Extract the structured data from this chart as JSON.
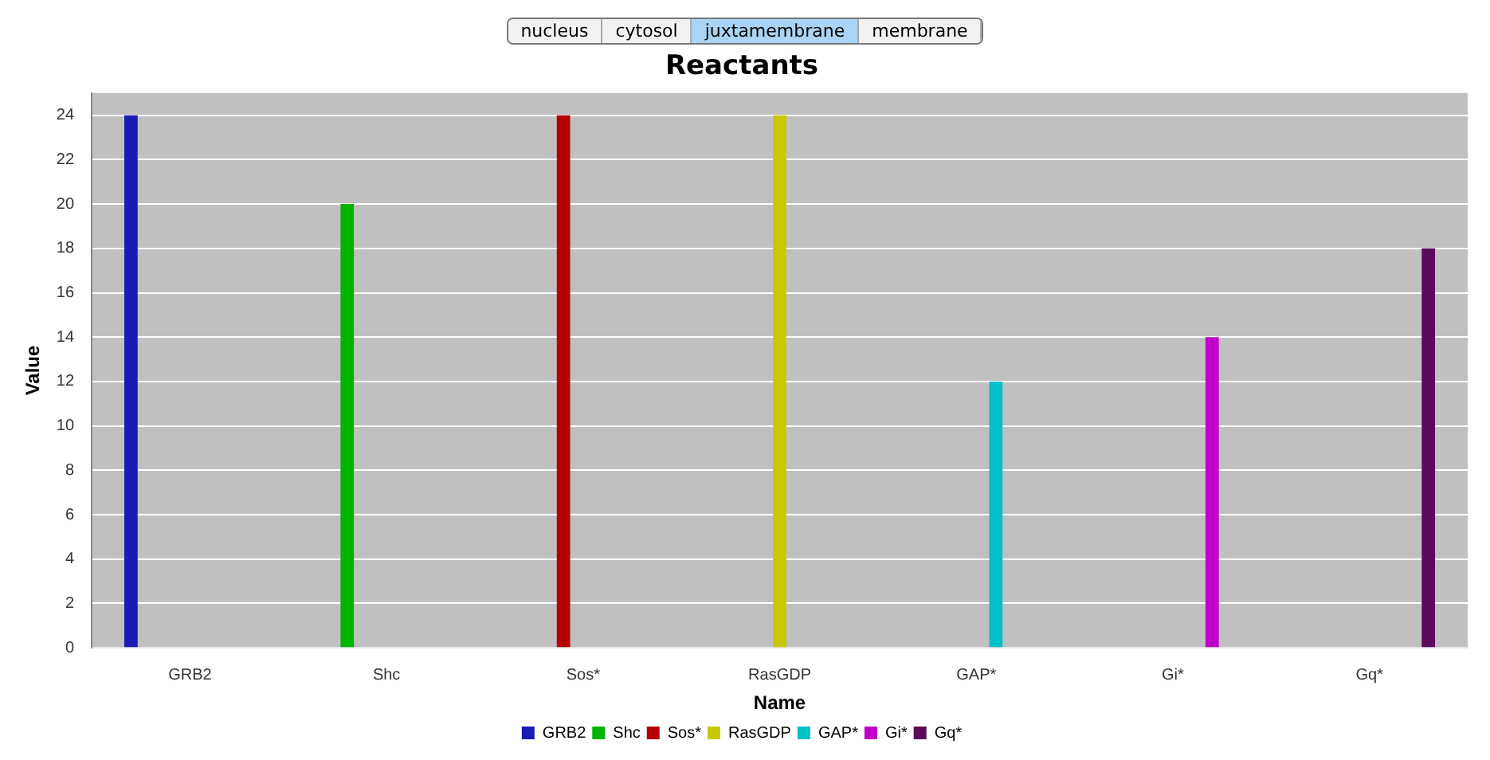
{
  "chart_data": {
    "type": "bar",
    "title": "Reactants",
    "xlabel": "Name",
    "ylabel": "Value",
    "annotations": [
      "nucleus",
      "cytosol",
      "juxtamembrane",
      "membrane"
    ],
    "categories": [
      "GRB2",
      "Shc",
      "Sos*",
      "RasGDP",
      "GAP*",
      "Gi*",
      "Gq*"
    ],
    "series": [
      {
        "name": "GRB2",
        "color": "#1a1ab4",
        "values": [
          24,
          null,
          null,
          null,
          null,
          null,
          null
        ]
      },
      {
        "name": "Shc",
        "color": "#00b400",
        "values": [
          null,
          20,
          null,
          null,
          null,
          null,
          null
        ]
      },
      {
        "name": "Sos*",
        "color": "#b40000",
        "values": [
          null,
          null,
          24,
          null,
          null,
          null,
          null
        ]
      },
      {
        "name": "RasGDP",
        "color": "#c8c800",
        "values": [
          null,
          null,
          null,
          24,
          null,
          null,
          null
        ]
      },
      {
        "name": "GAP*",
        "color": "#00c0c8",
        "values": [
          null,
          null,
          null,
          null,
          12,
          null,
          null
        ]
      },
      {
        "name": "Gi*",
        "color": "#c000c8",
        "values": [
          null,
          null,
          null,
          null,
          null,
          14,
          null
        ]
      },
      {
        "name": "Gq*",
        "color": "#5a0a5a",
        "values": [
          null,
          null,
          null,
          null,
          null,
          null,
          18
        ]
      }
    ],
    "ylim": [
      0,
      25
    ],
    "yticks": [
      0,
      2,
      4,
      6,
      8,
      10,
      12,
      14,
      16,
      18,
      20,
      22,
      24
    ],
    "grid": "y",
    "legend": "bottom"
  }
}
